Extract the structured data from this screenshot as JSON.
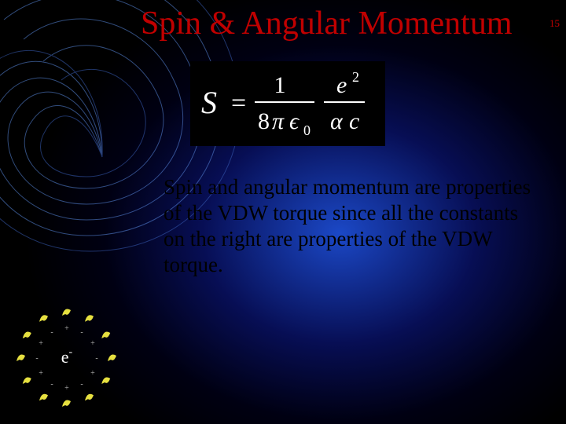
{
  "slide": {
    "title": "Spin & Angular Momentum",
    "title_color": "#c00000",
    "number": "15",
    "number_color": "#c00000",
    "body_text": "Spin and angular momentum are properties of the VDW torque since all the constants on the right are properties of the VDW torque.",
    "body_color": "#000000",
    "body_fontsize": 27
  },
  "background": {
    "base_color": "#000000",
    "gradient_center": "#1e50dc",
    "gradient_mid": "#0a1478",
    "swirl_colors": [
      "#6aa8ff",
      "#3366cc",
      "#88bbff",
      "#2a4aa0"
    ]
  },
  "formula": {
    "lhs": "S",
    "equals": "=",
    "frac1_num": "1",
    "frac1_den_a": "8",
    "frac1_den_pi": "π",
    "frac1_den_eps": "ϵ",
    "frac1_den_eps_sub": "0",
    "frac2_num_base": "e",
    "frac2_num_exp": "2",
    "frac2_den_alpha": "α",
    "frac2_den_c": "c",
    "color": "#ffffff",
    "bg": "#000000",
    "fontsize": 30
  },
  "electron_diagram": {
    "center_label": "e",
    "center_sup": "-",
    "center_color": "#ffffff",
    "ring_particles": 12,
    "particle_color": "#e6e040",
    "plus_minus_color": "#aaaaaa",
    "radius": 58
  }
}
